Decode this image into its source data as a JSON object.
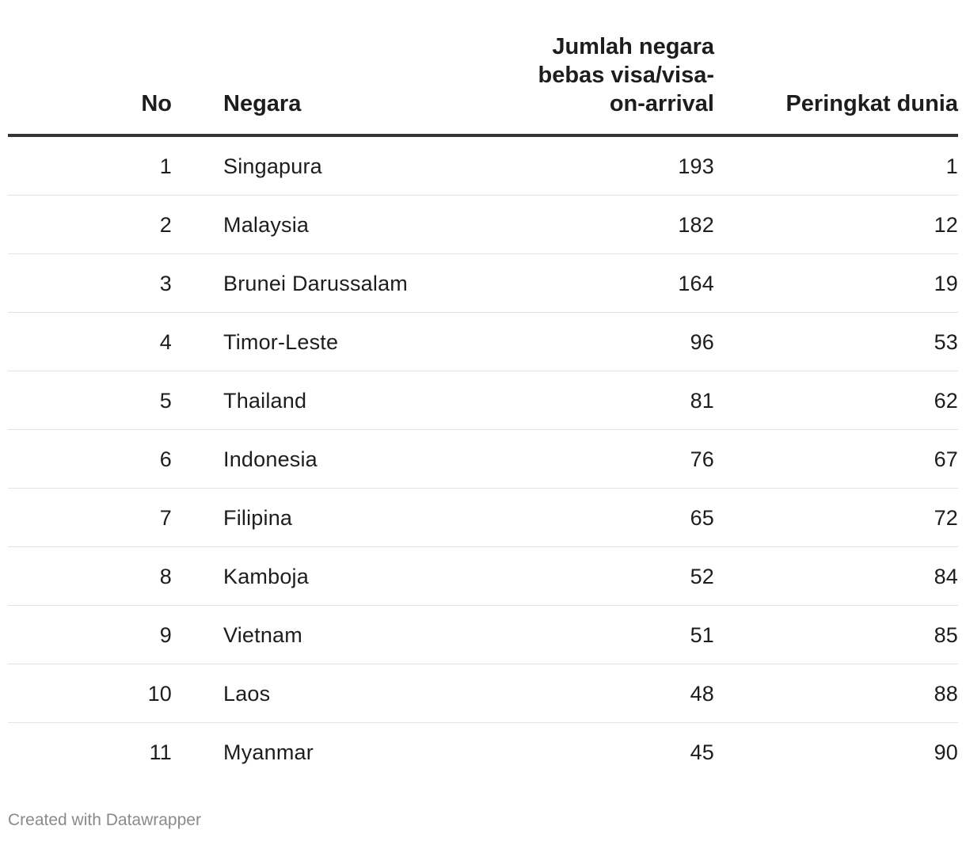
{
  "chart_data": {
    "type": "table",
    "columns": [
      "No",
      "Negara",
      "Jumlah negara\nbebas visa/visa-\non-arrival",
      "Peringkat dunia"
    ],
    "rows": [
      {
        "no": "1",
        "negara": "Singapura",
        "jumlah": "193",
        "peringkat": "1"
      },
      {
        "no": "2",
        "negara": "Malaysia",
        "jumlah": "182",
        "peringkat": "12"
      },
      {
        "no": "3",
        "negara": "Brunei Darussalam",
        "jumlah": "164",
        "peringkat": "19"
      },
      {
        "no": "4",
        "negara": "Timor-Leste",
        "jumlah": "96",
        "peringkat": "53"
      },
      {
        "no": "5",
        "negara": "Thailand",
        "jumlah": "81",
        "peringkat": "62"
      },
      {
        "no": "6",
        "negara": "Indonesia",
        "jumlah": "76",
        "peringkat": "67"
      },
      {
        "no": "7",
        "negara": "Filipina",
        "jumlah": "65",
        "peringkat": "72"
      },
      {
        "no": "8",
        "negara": "Kamboja",
        "jumlah": "52",
        "peringkat": "84"
      },
      {
        "no": "9",
        "negara": "Vietnam",
        "jumlah": "51",
        "peringkat": "85"
      },
      {
        "no": "10",
        "negara": "Laos",
        "jumlah": "48",
        "peringkat": "88"
      },
      {
        "no": "11",
        "negara": "Myanmar",
        "jumlah": "45",
        "peringkat": "90"
      }
    ]
  },
  "footer": {
    "credit": "Created with Datawrapper"
  }
}
